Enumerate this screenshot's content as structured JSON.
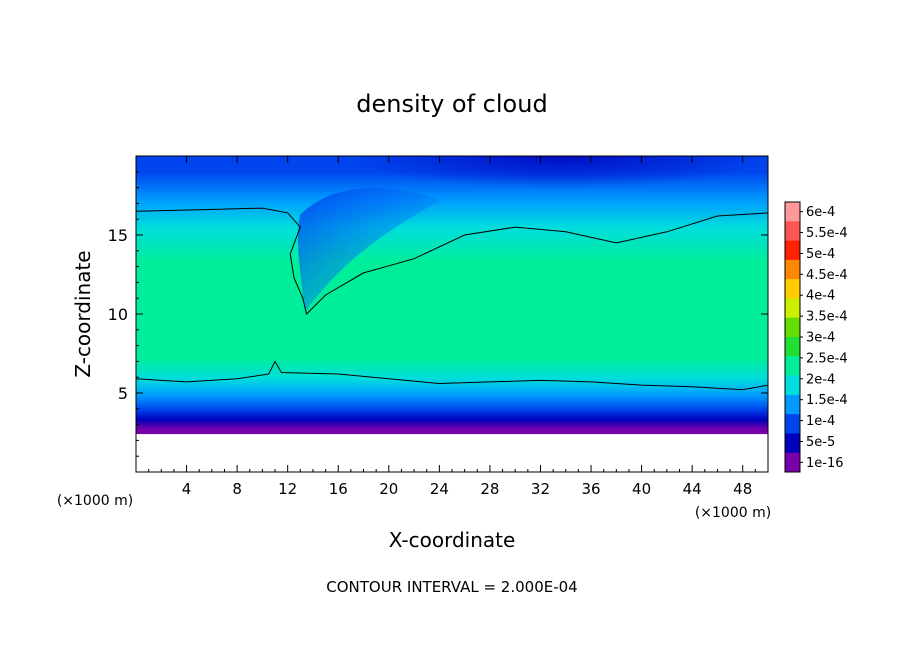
{
  "chart_data": {
    "type": "heatmap",
    "title": "density of cloud",
    "xlabel": "X-coordinate",
    "ylabel": "Z-coordinate",
    "x_unit_left": "(×1000 m)",
    "x_unit_right": "(×1000 m)",
    "footer": "CONTOUR INTERVAL = 2.000E-04",
    "xlim": [
      0,
      50
    ],
    "ylim": [
      0,
      20
    ],
    "x_ticks": [
      4,
      8,
      12,
      16,
      20,
      24,
      28,
      32,
      36,
      40,
      44,
      48
    ],
    "y_ticks": [
      5,
      10,
      15
    ],
    "colorbar": {
      "labels": [
        "6e-4",
        "5.5e-4",
        "5e-4",
        "4.5e-4",
        "4e-4",
        "3.5e-4",
        "3e-4",
        "2.5e-4",
        "2e-4",
        "1.5e-4",
        "1e-4",
        "5e-5",
        "1e-16"
      ],
      "levels": [
        0.0006,
        0.00055,
        0.0005,
        0.00045,
        0.0004,
        0.00035,
        0.0003,
        0.00025,
        0.0002,
        0.00015,
        0.0001,
        5e-05,
        1e-16
      ],
      "colors": [
        "#ff9999",
        "#ff5555",
        "#ff2200",
        "#ff8800",
        "#ffcc00",
        "#ccee00",
        "#66dd00",
        "#22dd33",
        "#00ee99",
        "#00dddd",
        "#0099ff",
        "#0044ee",
        "#0000bb",
        "#7700aa"
      ]
    },
    "bands": [
      {
        "z_top": 3.0,
        "value": 1e-16
      },
      {
        "z_top": 3.6,
        "value": 5e-05
      },
      {
        "z_top": 4.3,
        "value": 0.0001
      },
      {
        "z_top": 5.3,
        "value": 0.00015
      },
      {
        "z_top": 6.5,
        "value": 0.0002
      },
      {
        "z_top": 8.0,
        "value": 0.00025
      },
      {
        "z_top": 12.0,
        "value": 0.00027
      },
      {
        "z_top": 14.5,
        "value": 0.00025
      },
      {
        "z_top": 16.5,
        "value": 0.0002
      },
      {
        "z_top": 18.0,
        "value": 0.00015
      },
      {
        "z_top": 20.0,
        "value": 0.0001
      }
    ],
    "contours": [
      {
        "level": 0.0002,
        "points": [
          [
            0,
            16.5
          ],
          [
            5,
            16.6
          ],
          [
            10,
            16.7
          ],
          [
            12,
            16.4
          ],
          [
            13,
            15.5
          ],
          [
            12.2,
            13.8
          ],
          [
            12.5,
            12.3
          ],
          [
            13.2,
            11.0
          ],
          [
            13.5,
            10.0
          ],
          [
            15,
            11.2
          ],
          [
            18,
            12.6
          ],
          [
            22,
            13.5
          ],
          [
            26,
            15.0
          ],
          [
            30,
            15.5
          ],
          [
            34,
            15.2
          ],
          [
            38,
            14.5
          ],
          [
            42,
            15.2
          ],
          [
            46,
            16.2
          ],
          [
            50,
            16.4
          ]
        ]
      },
      {
        "level": 0.0002,
        "points": [
          [
            0,
            5.9
          ],
          [
            4,
            5.7
          ],
          [
            8,
            5.9
          ],
          [
            10.5,
            6.2
          ],
          [
            11,
            7.0
          ],
          [
            11.5,
            6.3
          ],
          [
            16,
            6.2
          ],
          [
            20,
            5.9
          ],
          [
            24,
            5.6
          ],
          [
            28,
            5.7
          ],
          [
            32,
            5.8
          ],
          [
            36,
            5.7
          ],
          [
            40,
            5.5
          ],
          [
            44,
            5.4
          ],
          [
            48,
            5.2
          ],
          [
            50,
            5.5
          ]
        ]
      }
    ]
  }
}
